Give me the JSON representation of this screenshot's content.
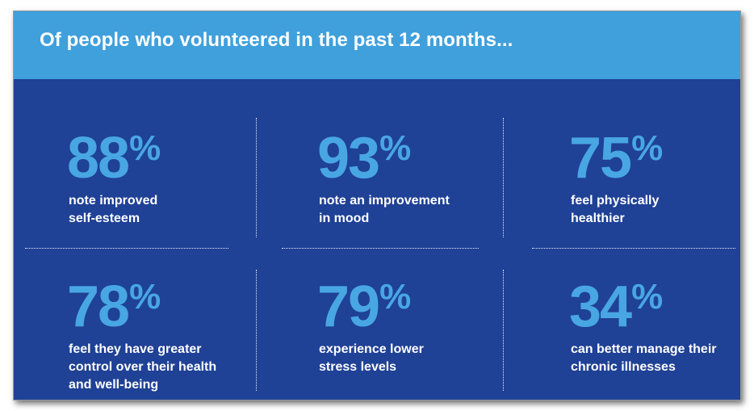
{
  "header": {
    "title": "Of people who volunteered in the past 12 months..."
  },
  "colors": {
    "banner": "#3fa0dc",
    "panel": "#1f4196",
    "stat_value": "#48a6e3",
    "caption": "#ffffff"
  },
  "stats": [
    {
      "value": "88",
      "unit": "%",
      "line1": "note improved",
      "line2": "self-esteem",
      "line3": ""
    },
    {
      "value": "93",
      "unit": "%",
      "line1": "note an improvement",
      "line2": "in mood",
      "line3": ""
    },
    {
      "value": "75",
      "unit": "%",
      "line1": "feel physically",
      "line2": "healthier",
      "line3": ""
    },
    {
      "value": "78",
      "unit": "%",
      "line1": "feel they have greater",
      "line2": "control over their health",
      "line3": "and well-being"
    },
    {
      "value": "79",
      "unit": "%",
      "line1": "experience lower",
      "line2": "stress levels",
      "line3": ""
    },
    {
      "value": "34",
      "unit": "%",
      "line1": "can better manage their",
      "line2": "chronic illnesses",
      "line3": ""
    }
  ]
}
